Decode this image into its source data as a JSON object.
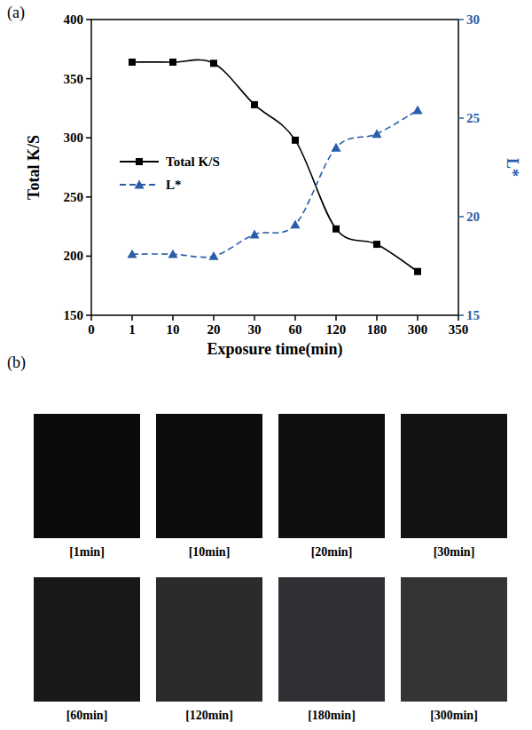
{
  "chart_data": {
    "type": "line",
    "panel_label": "(a)",
    "x_label": "Exposure time(min)",
    "y_label": "Total K/S",
    "y2_label": "L*",
    "categories": [
      "0",
      "1",
      "10",
      "20",
      "30",
      "60",
      "120",
      "180",
      "300",
      "350"
    ],
    "series": [
      {
        "name": "Total K/S",
        "color": "#000000",
        "marker": "square",
        "line_style": "solid",
        "values": [
          null,
          364,
          364,
          363,
          328,
          298,
          223,
          210,
          187,
          null
        ]
      },
      {
        "name": "L*",
        "color": "#2a5caa",
        "marker": "triangle",
        "line_style": "dashed",
        "axis": "y2",
        "values": [
          null,
          18.1,
          18.1,
          18.0,
          19.1,
          19.6,
          23.5,
          24.2,
          25.4,
          null
        ]
      }
    ],
    "ylim": [
      150,
      400
    ],
    "yticks": [
      150,
      200,
      250,
      300,
      350,
      400
    ],
    "y2lim": [
      15,
      30
    ],
    "y2ticks": [
      15,
      20,
      25,
      30
    ],
    "grid": false,
    "legend": "left"
  },
  "panel_b": {
    "panel_label": "(b)",
    "swatches": [
      {
        "label": "[1min]",
        "color": "#0b0b0b"
      },
      {
        "label": "[10min]",
        "color": "#0c0c0d"
      },
      {
        "label": "[20min]",
        "color": "#0f0f11"
      },
      {
        "label": "[30min]",
        "color": "#131315"
      },
      {
        "label": "[60min]",
        "color": "#18181b"
      },
      {
        "label": "[120min]",
        "color": "#2b2b2e"
      },
      {
        "label": "[180min]",
        "color": "#2f3034"
      },
      {
        "label": "[300min]",
        "color": "#343437"
      }
    ]
  }
}
